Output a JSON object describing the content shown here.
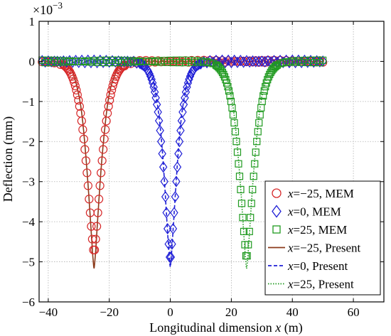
{
  "chart_data": {
    "type": "line",
    "xlabel_main": "Longitudinal dimension",
    "xlabel_var": "x",
    "xlabel_unit": "(m)",
    "ylabel": "Deflection (mm)",
    "y_multiplier": "×10",
    "y_multiplier_exp": "−3",
    "xlim": [
      -43,
      70
    ],
    "ylim": [
      -6,
      1
    ],
    "xticks": [
      -40,
      -20,
      0,
      20,
      40,
      60
    ],
    "xtick_labels": [
      "−40",
      "−20",
      "0",
      "20",
      "40",
      "60"
    ],
    "yticks": [
      1,
      0,
      -1,
      -2,
      -3,
      -4,
      -5,
      -6
    ],
    "ytick_labels": [
      "1",
      "0",
      "−1",
      "−2",
      "−3",
      "−4",
      "−5",
      "−6"
    ],
    "grid": true,
    "legend_position": "bottom-right",
    "colors": {
      "mem_m25": "#d62728",
      "mem_0": "#1f1fd6",
      "mem_25": "#1f9a1f",
      "present_m25": "#8b3a1a",
      "present_0": "#1f1fd6",
      "present_25": "#1f9a1f",
      "band": "#f4b8d0"
    },
    "legend": [
      {
        "var": "x",
        "text": "=−25, MEM",
        "marker": "circle",
        "color": "#d62728"
      },
      {
        "var": "x",
        "text": "=0, MEM",
        "marker": "diamond",
        "color": "#1f1fd6"
      },
      {
        "var": "x",
        "text": "=25, MEM",
        "marker": "square",
        "color": "#1f9a1f"
      },
      {
        "var": "x",
        "text": "=−25, Present",
        "line": "solid",
        "color": "#8b3a1a"
      },
      {
        "var": "x",
        "text": "=0, Present",
        "line": "dashed",
        "color": "#1f1fd6"
      },
      {
        "var": "x",
        "text": "=25, Present",
        "line": "dotted",
        "color": "#1f9a1f"
      }
    ],
    "series": [
      {
        "name": "x=−25, MEM",
        "center": -25,
        "depth": 4.8,
        "width": 3.6,
        "marker": "circle"
      },
      {
        "name": "x=0, MEM",
        "center": 0,
        "depth": 5.0,
        "width": 3.2,
        "marker": "diamond"
      },
      {
        "name": "x=25, MEM",
        "center": 25,
        "depth": 4.95,
        "width": 3.6,
        "marker": "square"
      },
      {
        "name": "x=−25, Present",
        "center": -25,
        "depth": 5.15,
        "width": 3.2,
        "line": "solid"
      },
      {
        "name": "x=0, Present",
        "center": 0,
        "depth": 5.15,
        "width": 3.0,
        "line": "dashed"
      },
      {
        "name": "x=25, Present",
        "center": 25,
        "depth": 5.15,
        "width": 3.3,
        "line": "dotted"
      }
    ],
    "x_range": [
      -42,
      50
    ]
  }
}
